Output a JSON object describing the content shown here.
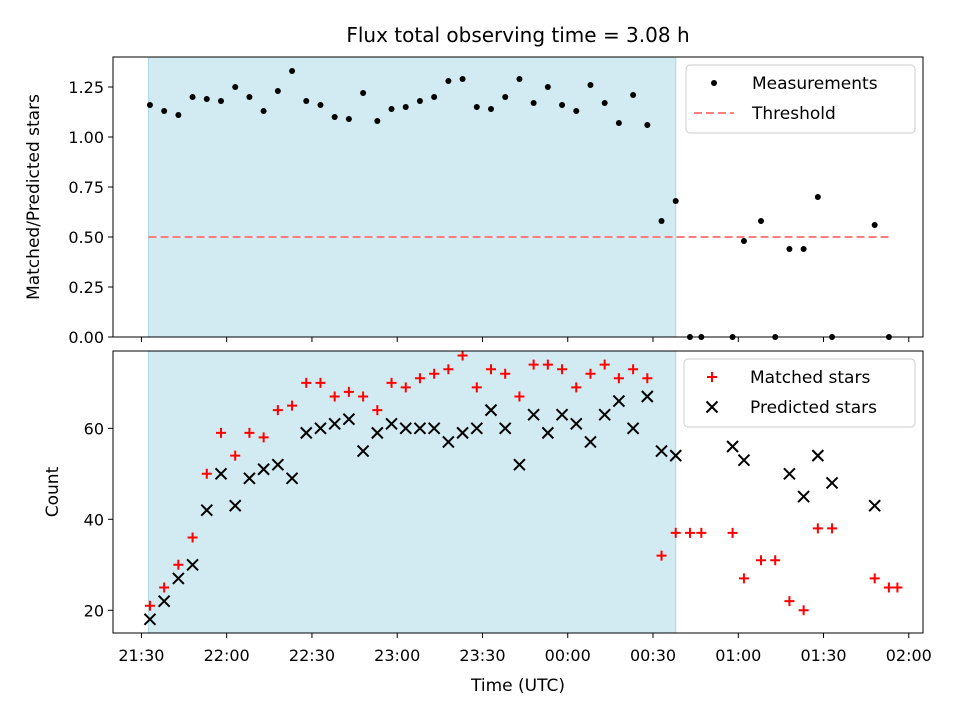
{
  "chart_data": {
    "title": "Flux total observing time = 3.08 h",
    "xlabel": "Time (UTC)",
    "x_ticks": [
      "21:30",
      "22:00",
      "22:30",
      "23:00",
      "23:30",
      "00:00",
      "00:30",
      "01:00",
      "01:30",
      "02:00"
    ],
    "x_tick_minutes": [
      0,
      30,
      60,
      90,
      120,
      150,
      180,
      210,
      240,
      270
    ],
    "xlim_minutes_after_2130": [
      -10,
      275
    ],
    "colors": {
      "shade": "#add8e6",
      "threshold": "#ff7f7f",
      "matched": "#ff0000",
      "predicted": "#000000",
      "measurement": "#000000"
    },
    "panels": [
      {
        "type": "scatter",
        "ylabel": "Matched/Predicted stars",
        "ylim": [
          0,
          1.4
        ],
        "yticks": [
          0.0,
          0.25,
          0.5,
          0.75,
          1.0,
          1.25
        ],
        "ytick_labels": [
          "0.00",
          "0.25",
          "0.50",
          "0.75",
          "1.00",
          "1.25"
        ],
        "shaded_span_minutes": [
          2.5,
          188
        ],
        "legend_position": "top-right",
        "legend": [
          "Measurements",
          "Threshold"
        ],
        "threshold": {
          "value": 0.5,
          "x_range_minutes": [
            2.5,
            263
          ]
        },
        "measurements": {
          "x_minutes": [
            3,
            8,
            13,
            18,
            23,
            28,
            33,
            38,
            43,
            48,
            53,
            58,
            63,
            68,
            73,
            78,
            83,
            88,
            93,
            98,
            103,
            108,
            113,
            118,
            123,
            128,
            133,
            138,
            143,
            148,
            153,
            158,
            163,
            168,
            173,
            178,
            183,
            188,
            193,
            197,
            208,
            212,
            218,
            223,
            228,
            233,
            238,
            243,
            258,
            263
          ],
          "y": [
            1.16,
            1.13,
            1.11,
            1.2,
            1.19,
            1.18,
            1.25,
            1.2,
            1.13,
            1.23,
            1.33,
            1.18,
            1.16,
            1.1,
            1.09,
            1.22,
            1.08,
            1.14,
            1.15,
            1.18,
            1.2,
            1.28,
            1.29,
            1.15,
            1.14,
            1.2,
            1.29,
            1.17,
            1.25,
            1.16,
            1.13,
            1.26,
            1.17,
            1.07,
            1.21,
            1.06,
            0.58,
            0.68,
            0.0,
            0.0,
            0.0,
            0.48,
            0.58,
            0.0,
            0.44,
            0.44,
            0.7,
            0.0,
            0.56,
            0.0
          ]
        }
      },
      {
        "type": "scatter",
        "ylabel": "Count",
        "ylim": [
          15,
          77
        ],
        "yticks": [
          20,
          40,
          60
        ],
        "ytick_labels": [
          "20",
          "40",
          "60"
        ],
        "shaded_span_minutes": [
          2.5,
          188
        ],
        "legend_position": "top-right",
        "legend": [
          "Matched stars",
          "Predicted stars"
        ],
        "matched": {
          "x_minutes": [
            3,
            8,
            13,
            18,
            23,
            28,
            33,
            38,
            43,
            48,
            53,
            58,
            63,
            68,
            73,
            78,
            83,
            88,
            93,
            98,
            103,
            108,
            113,
            118,
            123,
            128,
            133,
            138,
            143,
            148,
            153,
            158,
            163,
            168,
            173,
            178,
            183,
            188,
            193,
            197,
            208,
            212,
            218,
            223,
            228,
            233,
            238,
            243,
            258,
            263
          ],
          "y": [
            21,
            25,
            30,
            36,
            50,
            59,
            54,
            59,
            58,
            64,
            65,
            70,
            70,
            67,
            68,
            67,
            64,
            70,
            69,
            71,
            72,
            73,
            76,
            69,
            73,
            72,
            67,
            74,
            74,
            73,
            69,
            72,
            74,
            71,
            73,
            71,
            32,
            37,
            37,
            37,
            37,
            27,
            31,
            31,
            22,
            20,
            38,
            38,
            27,
            25
          ]
        },
        "predicted": {
          "x_minutes": [
            3,
            8,
            13,
            18,
            23,
            28,
            33,
            38,
            43,
            48,
            53,
            58,
            63,
            68,
            73,
            78,
            83,
            88,
            93,
            98,
            103,
            108,
            113,
            118,
            123,
            128,
            133,
            138,
            143,
            148,
            153,
            158,
            163,
            168,
            173,
            178,
            183,
            188,
            208,
            212,
            228,
            233,
            238,
            243,
            258
          ],
          "y": [
            18,
            22,
            27,
            30,
            42,
            50,
            43,
            49,
            51,
            52,
            49,
            59,
            60,
            61,
            62,
            55,
            59,
            61,
            60,
            60,
            60,
            57,
            59,
            60,
            64,
            60,
            52,
            63,
            59,
            63,
            61,
            57,
            63,
            66,
            60,
            67,
            55,
            54,
            56,
            53,
            50,
            45,
            54,
            48,
            43
          ]
        },
        "extra_matched": {
          "x_minutes": [
            266
          ],
          "y": [
            25
          ]
        }
      }
    ]
  }
}
